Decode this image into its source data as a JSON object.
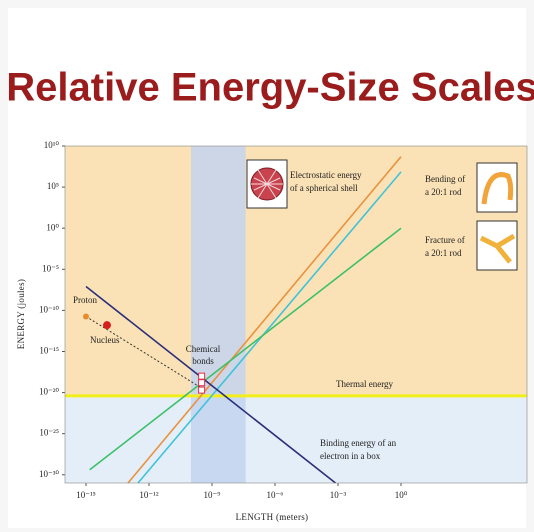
{
  "title": "Relative Energy-Size Scales",
  "chart_data": {
    "type": "line",
    "xscale": "log",
    "yscale": "log",
    "xlabel": "LENGTH (meters)",
    "ylabel": "ENERGY (joules)",
    "xlim": [
      1e-16,
      1000000.0
    ],
    "ylim": [
      1e-31,
      10000000000.0
    ],
    "xticks": [
      {
        "value": 1e-15,
        "label": "10⁻¹⁵"
      },
      {
        "value": 1e-12,
        "label": "10⁻¹²"
      },
      {
        "value": 1e-09,
        "label": "10⁻⁹"
      },
      {
        "value": 1e-06,
        "label": "10⁻⁶"
      },
      {
        "value": 0.001,
        "label": "10⁻³"
      },
      {
        "value": 1,
        "label": "10⁰"
      }
    ],
    "yticks": [
      {
        "value": 10000000000.0,
        "label": "10¹⁰"
      },
      {
        "value": 100000.0,
        "label": "10⁵"
      },
      {
        "value": 1,
        "label": "10⁰"
      },
      {
        "value": 1e-05,
        "label": "10⁻⁵"
      },
      {
        "value": 1e-10,
        "label": "10⁻¹⁰"
      },
      {
        "value": 1e-15,
        "label": "10⁻¹⁵"
      },
      {
        "value": 1e-20,
        "label": "10⁻²⁰"
      },
      {
        "value": 1e-25,
        "label": "10⁻²⁵"
      },
      {
        "value": 1e-30,
        "label": "10⁻³⁰"
      }
    ],
    "upper_color": "#fbe2b6",
    "lower_color": "#e4eef8",
    "band": {
      "x": [
        1e-10,
        4e-08
      ],
      "color": "#c3d3ee"
    },
    "thermal": {
      "value": 4e-21,
      "color": "#f2ee1a"
    },
    "series": [
      {
        "color": "#e8923e",
        "x": [
          1e-13,
          1
        ],
        "values": [
          1e-31,
          500000000.0
        ]
      },
      {
        "color": "#3ec3d8",
        "x": [
          3e-13,
          1
        ],
        "values": [
          1e-31,
          7000000.0
        ]
      },
      {
        "color": "#3cc06a",
        "x": [
          1.5e-15,
          1
        ],
        "values": [
          4e-30,
          1
        ]
      },
      {
        "color": "#2c2f7a",
        "x": [
          1e-15,
          0.00076
        ],
        "values": [
          8e-08,
          1e-31
        ]
      },
      {
        "color": "#333333",
        "dash": true,
        "x": [
          1e-15,
          4e-10
        ],
        "values": [
          1.8e-11,
          2.5e-20
        ]
      }
    ],
    "points": [
      {
        "x": 1e-15,
        "y": 1.8e-11,
        "color": "#e88a2e",
        "size": 3
      },
      {
        "x": 1e-14,
        "y": 1.6e-12,
        "color": "#d62020",
        "size": 4
      }
    ],
    "bonds": {
      "x": 3.2e-10,
      "y": [
        1e-18,
        1.6e-19,
        2e-20
      ],
      "color": "#e0304a"
    },
    "annotations": {
      "electrostatic": [
        "Electrostatic energy",
        "of a spherical shell"
      ],
      "bending": [
        "Bending of",
        "a 20:1 rod"
      ],
      "fracture": [
        "Fracture of",
        "a 20:1 rod"
      ],
      "proton": "Proton",
      "nucleus": "Nucleus",
      "bonds": [
        "Chemical",
        "bonds"
      ],
      "thermal": "Thermal energy",
      "binding": [
        "Binding energy of an",
        "electron in a box"
      ]
    }
  }
}
